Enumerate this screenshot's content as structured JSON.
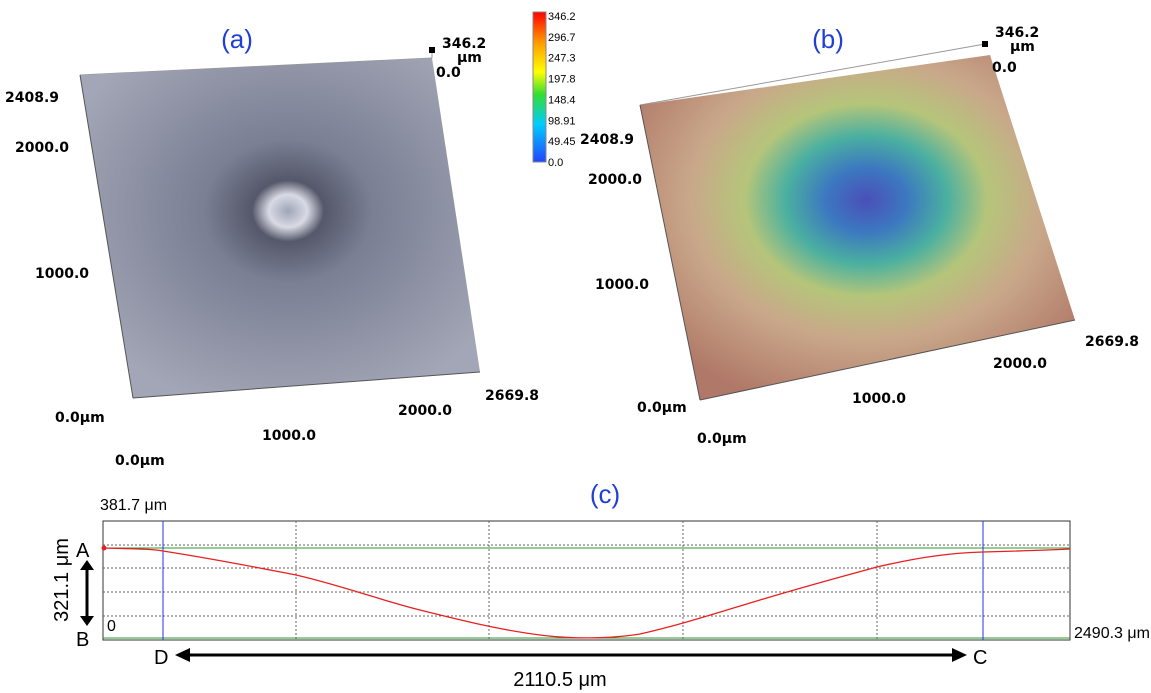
{
  "panel_a": {
    "label": "(a)",
    "z_max": "346.2",
    "z_unit": "μm",
    "z_min": "0.0",
    "y_max": "2408.9",
    "y_2000": "2000.0",
    "y_1000": "1000.0",
    "y_origin": "0.0μm",
    "x_1000": "1000.0",
    "x_2000": "2000.0",
    "x_max": "2669.8",
    "x_origin": "0.0μm"
  },
  "colorbar": {
    "ticks": [
      "346.2",
      "296.7",
      "247.3",
      "197.8",
      "148.4",
      "98.91",
      "49.45",
      "0.0"
    ]
  },
  "panel_b": {
    "label": "(b)",
    "z_max": "346.2",
    "z_unit": "μm",
    "z_min": "0.0",
    "y_max": "2408.9",
    "y_2000": "2000.0",
    "y_1000": "1000.0",
    "y_origin": "0.0μm",
    "x_1000": "1000.0",
    "x_2000": "2000.0",
    "x_max": "2669.8",
    "x_origin": "0.0μm"
  },
  "panel_c": {
    "label": "(c)",
    "top_value": "381.7 μm",
    "point_a": "A",
    "point_b": "B",
    "depth": "321.1 μm",
    "zero": "0",
    "right_value": "2490.3 μm",
    "point_d": "D",
    "point_c": "C",
    "width": "2110.5 μm"
  }
}
